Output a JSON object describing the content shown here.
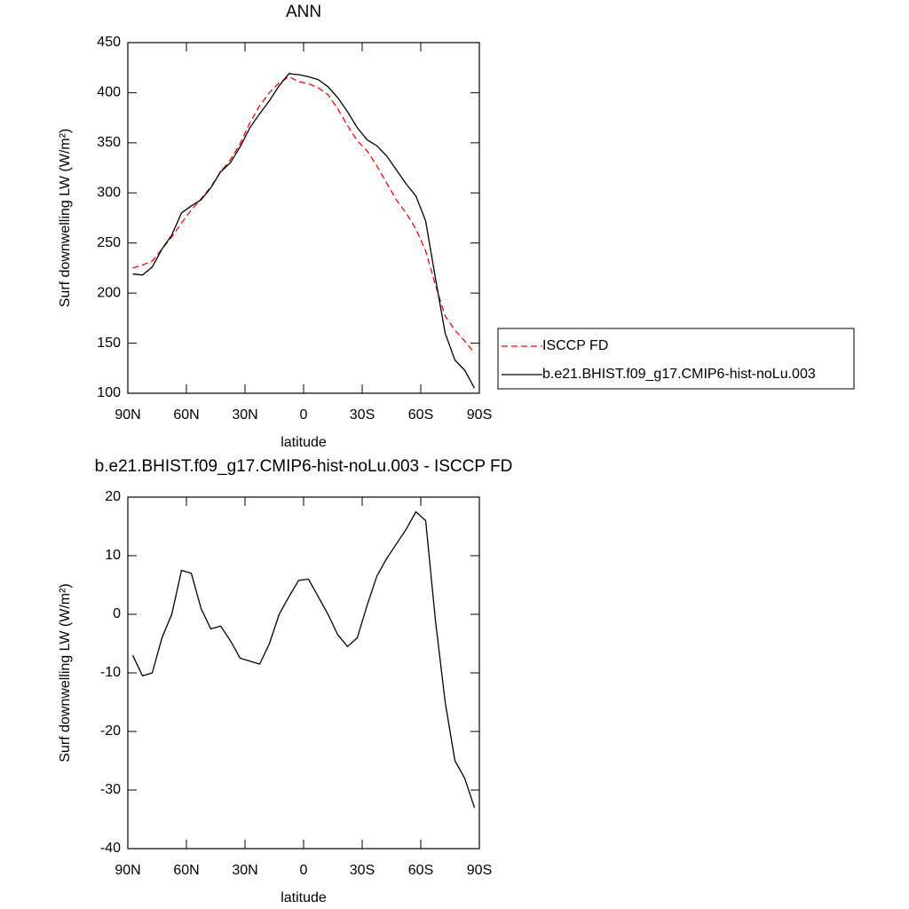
{
  "chart_data": [
    {
      "type": "line",
      "title": "ANN",
      "xlabel": "latitude",
      "ylabel": "Surf downwelling LW (W/m²)",
      "x": [
        87.5,
        82.5,
        77.5,
        72.5,
        67.5,
        62.5,
        57.5,
        52.5,
        47.5,
        42.5,
        37.5,
        32.5,
        27.5,
        22.5,
        17.5,
        12.5,
        7.5,
        2.5,
        -2.5,
        -7.5,
        -12.5,
        -17.5,
        -22.5,
        -27.5,
        -32.5,
        -37.5,
        -42.5,
        -47.5,
        -52.5,
        -57.5,
        -62.5,
        -67.5,
        -72.5,
        -77.5,
        -82.5,
        -87.5
      ],
      "series": [
        {
          "name": "ISCCP FD",
          "color": "#ff0000",
          "line_style": "dashed",
          "values": [
            225,
            228,
            232,
            244,
            256,
            270,
            283,
            294,
            306,
            321,
            333,
            349,
            370,
            387,
            400,
            410,
            416,
            411,
            409,
            405,
            398,
            384,
            367,
            352,
            342,
            327,
            310,
            293,
            280,
            264,
            242,
            208,
            177,
            163,
            152,
            140
          ]
        },
        {
          "name": "b.e21.BHIST.f09_g17.CMIP6-hist-noLu.003",
          "color": "#000000",
          "line_style": "solid",
          "values": [
            219,
            218,
            226,
            244,
            258,
            280,
            287,
            293,
            305,
            321,
            330,
            346,
            365,
            379,
            392,
            407,
            419,
            418,
            416,
            413,
            406,
            395,
            381,
            365,
            353,
            347,
            337,
            323,
            309,
            297,
            272,
            215,
            160,
            133,
            123,
            105
          ]
        }
      ],
      "xlim": [
        90,
        -90
      ],
      "xticks": [
        {
          "value": 90,
          "label": "90N"
        },
        {
          "value": 60,
          "label": "60N"
        },
        {
          "value": 30,
          "label": "30N"
        },
        0,
        {
          "value": -30,
          "label": "30S"
        },
        {
          "value": -60,
          "label": "60S"
        },
        {
          "value": -90,
          "label": "90S"
        }
      ],
      "ylim": [
        100,
        450
      ],
      "yticks": [
        100,
        150,
        200,
        250,
        300,
        350,
        400,
        450
      ],
      "legend": "right"
    },
    {
      "type": "line",
      "title": "b.e21.BHIST.f09_g17.CMIP6-hist-noLu.003 - ISCCP FD",
      "xlabel": "latitude",
      "ylabel": "Surf downwelling LW (W/m²)",
      "x": [
        87.5,
        82.5,
        77.5,
        72.5,
        67.5,
        62.5,
        57.5,
        52.5,
        47.5,
        42.5,
        37.5,
        32.5,
        27.5,
        22.5,
        17.5,
        12.5,
        7.5,
        2.5,
        -2.5,
        -7.5,
        -12.5,
        -17.5,
        -22.5,
        -27.5,
        -32.5,
        -37.5,
        -42.5,
        -47.5,
        -52.5,
        -57.5,
        -62.5,
        -67.5,
        -72.5,
        -77.5,
        -82.5,
        -87.5
      ],
      "series": [
        {
          "color": "#000000",
          "line_style": "solid",
          "values": [
            -7,
            -10.5,
            -10,
            -4,
            0,
            7.5,
            7,
            1,
            -2.5,
            -2,
            -4.5,
            -7.5,
            -8,
            -8.5,
            -5,
            0,
            3,
            5.8,
            6,
            3,
            0,
            -3.5,
            -5.5,
            -4,
            1.5,
            6.5,
            9.5,
            12,
            14.5,
            17.5,
            16,
            -1,
            -15,
            -25,
            -28,
            -33
          ]
        }
      ],
      "xlim": [
        90,
        -90
      ],
      "xticks": [
        {
          "value": 90,
          "label": "90N"
        },
        {
          "value": 60,
          "label": "60N"
        },
        {
          "value": 30,
          "label": "30N"
        },
        0,
        {
          "value": -30,
          "label": "30S"
        },
        {
          "value": -60,
          "label": "60S"
        },
        {
          "value": -90,
          "label": "90S"
        }
      ],
      "ylim": [
        -40,
        20
      ],
      "yticks": [
        -40,
        -30,
        -20,
        -10,
        0,
        10,
        20
      ]
    }
  ]
}
